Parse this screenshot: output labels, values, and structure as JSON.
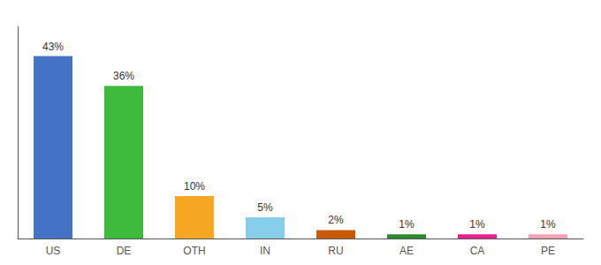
{
  "chart_data": {
    "type": "bar",
    "categories": [
      "US",
      "DE",
      "OTH",
      "IN",
      "RU",
      "AE",
      "CA",
      "PE"
    ],
    "values": [
      43,
      36,
      10,
      5,
      2,
      1,
      1,
      1
    ],
    "value_labels": [
      "43%",
      "36%",
      "10%",
      "5%",
      "2%",
      "1%",
      "1%",
      "1%"
    ],
    "colors": [
      "#4472c4",
      "#3dbb3d",
      "#f5a623",
      "#87ceeb",
      "#c85a00",
      "#2d8a2d",
      "#e91e8c",
      "#f4a0b5"
    ],
    "data_labels": true,
    "ylim": [
      0,
      50
    ],
    "grid": false,
    "tick_labels": "x"
  }
}
